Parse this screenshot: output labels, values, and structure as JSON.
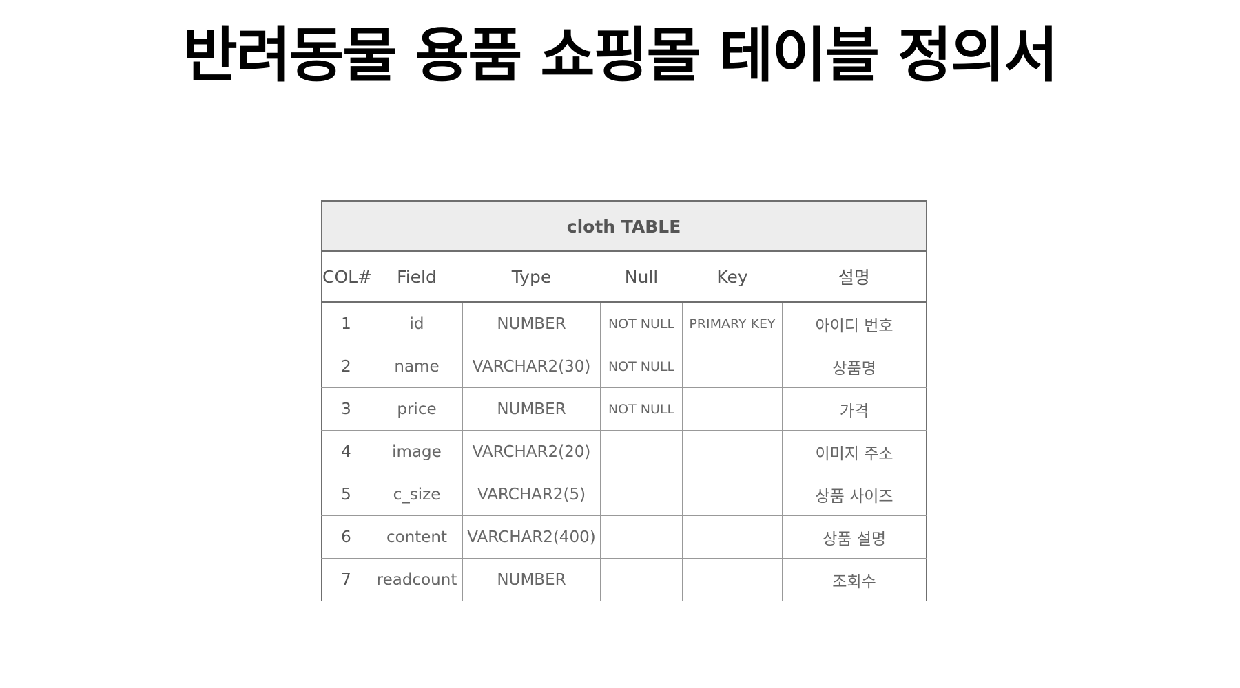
{
  "title": "반려동물 용품 쇼핑몰 테이블 정의서",
  "table": {
    "caption": "cloth TABLE",
    "headers": [
      "COL#",
      "Field",
      "Type",
      "Null",
      "Key",
      "설명"
    ],
    "rows": [
      {
        "col": "1",
        "field": "id",
        "type": "NUMBER",
        "null": "NOT NULL",
        "key": "PRIMARY KEY",
        "desc": "아이디 번호"
      },
      {
        "col": "2",
        "field": "name",
        "type": "VARCHAR2(30)",
        "null": "NOT NULL",
        "key": "",
        "desc": "상품명"
      },
      {
        "col": "3",
        "field": "price",
        "type": "NUMBER",
        "null": "NOT NULL",
        "key": "",
        "desc": "가격"
      },
      {
        "col": "4",
        "field": "image",
        "type": "VARCHAR2(20)",
        "null": "",
        "key": "",
        "desc": "이미지 주소"
      },
      {
        "col": "5",
        "field": "c_size",
        "type": "VARCHAR2(5)",
        "null": "",
        "key": "",
        "desc": "상품 사이즈"
      },
      {
        "col": "6",
        "field": "content",
        "type": "VARCHAR2(400)",
        "null": "",
        "key": "",
        "desc": "상품 설명"
      },
      {
        "col": "7",
        "field": "readcount",
        "type": "NUMBER",
        "null": "",
        "key": "",
        "desc": "조회수"
      }
    ]
  },
  "colors": {
    "caption_background": "#ededed",
    "border": "#6f6f6f",
    "text": "#666666"
  }
}
